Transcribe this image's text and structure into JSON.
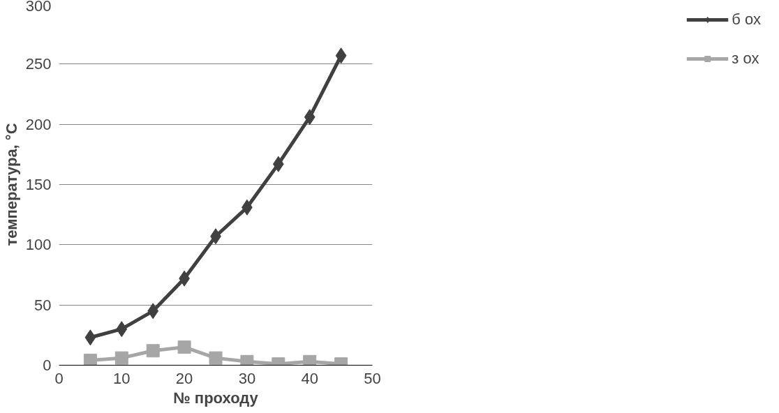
{
  "chart_data": {
    "type": "line",
    "xlabel": "№ проходу",
    "ylabel": "температура, °C",
    "x": [
      5,
      10,
      15,
      20,
      25,
      30,
      35,
      40,
      45
    ],
    "series": [
      {
        "name": "б ох",
        "color": "#404040",
        "marker": "diamond",
        "values": [
          23,
          30,
          45,
          72,
          107,
          131,
          167,
          206,
          257
        ]
      },
      {
        "name": "з ох",
        "color": "#a6a6a6",
        "marker": "square",
        "values": [
          4,
          6,
          12,
          15,
          6,
          3,
          1,
          3,
          1
        ]
      }
    ],
    "xlim": [
      0,
      50
    ],
    "xticks": [
      0,
      10,
      20,
      30,
      40,
      50
    ],
    "ylim": [
      0,
      300
    ],
    "yticks": [
      0,
      50,
      100,
      150,
      200,
      250,
      300
    ],
    "grid": "y",
    "legend": "right",
    "line_style": "solid"
  }
}
